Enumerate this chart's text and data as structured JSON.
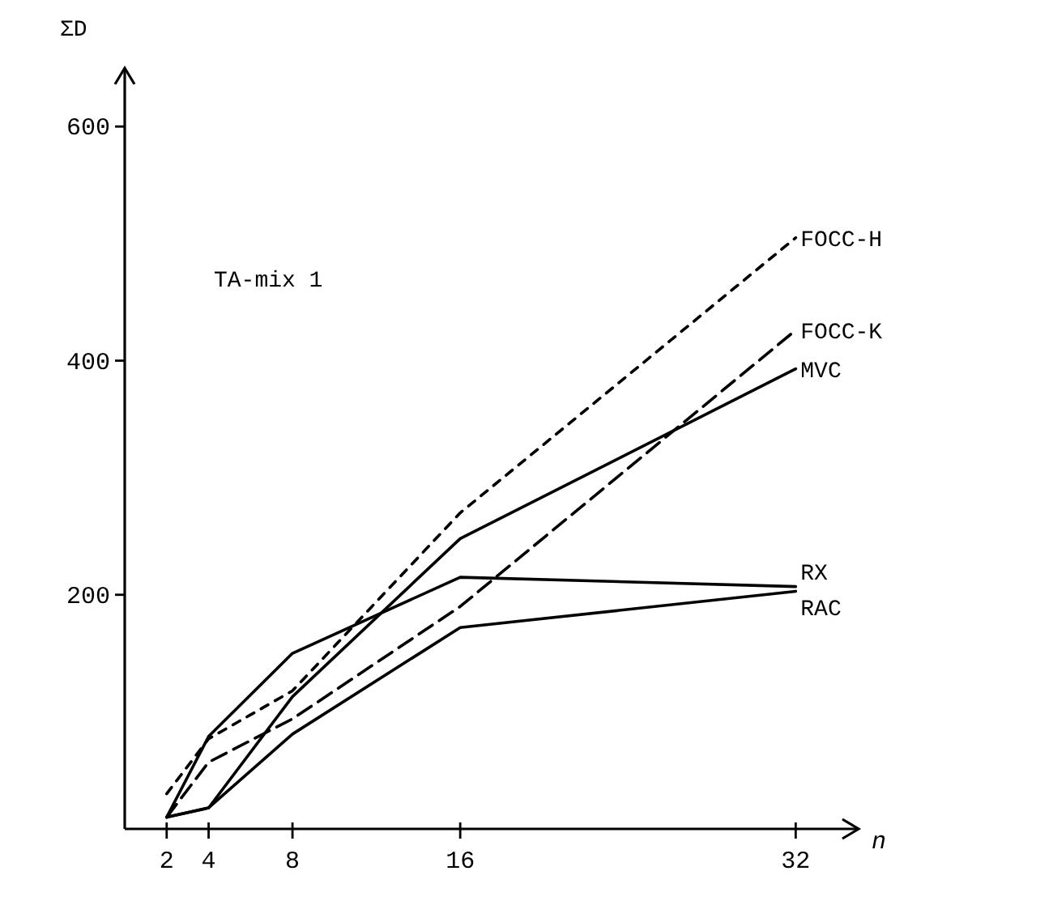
{
  "chart_data": {
    "type": "line",
    "xlabel": "n",
    "ylabel": "ΣD",
    "annotations": [
      "TA-mix 1"
    ],
    "x": [
      2,
      4,
      8,
      16,
      32
    ],
    "xlim": [
      0,
      35
    ],
    "xticks": [
      2,
      4,
      8,
      16,
      32
    ],
    "ylim": [
      0,
      650
    ],
    "yticks": [
      200,
      400,
      600
    ],
    "grid": false,
    "legend": false,
    "marker": "none",
    "series": [
      {
        "name": "FOCC-H",
        "color": "#000000",
        "line_style": "dotted",
        "values": [
          30,
          77,
          118,
          270,
          505
        ]
      },
      {
        "name": "FOCC-K",
        "color": "#000000",
        "line_style": "dashed",
        "values": [
          10,
          57,
          94,
          190,
          426
        ]
      },
      {
        "name": "MVC",
        "color": "#000000",
        "line_style": "solid",
        "values": [
          10,
          18,
          113,
          248,
          393
        ]
      },
      {
        "name": "RX",
        "color": "#000000",
        "line_style": "solid",
        "values": [
          10,
          79,
          150,
          215,
          207
        ]
      },
      {
        "name": "RAC",
        "color": "#000000",
        "line_style": "solid",
        "values": [
          10,
          18,
          81,
          172,
          203
        ]
      }
    ]
  }
}
